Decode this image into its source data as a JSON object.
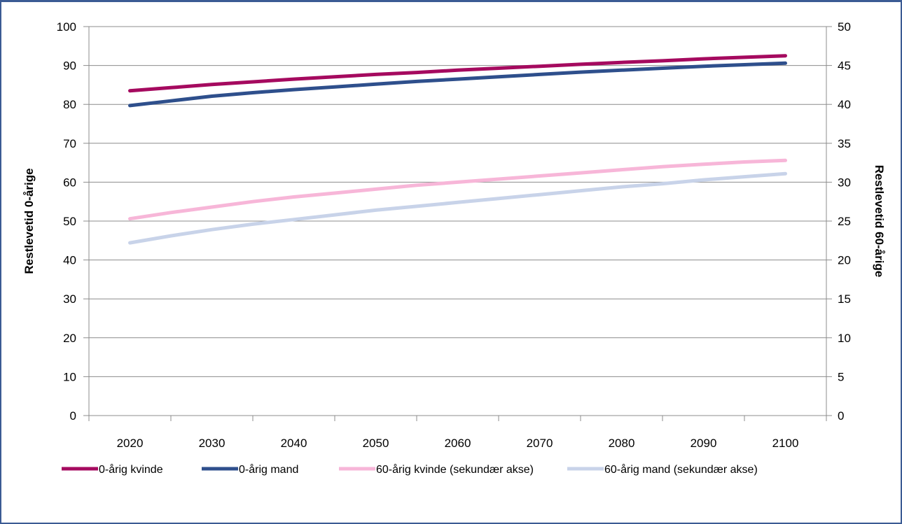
{
  "chart_data": {
    "type": "line",
    "x": [
      2020,
      2025,
      2030,
      2035,
      2040,
      2045,
      2050,
      2055,
      2060,
      2065,
      2070,
      2075,
      2080,
      2085,
      2090,
      2095,
      2100
    ],
    "xticks": [
      "2020",
      "2030",
      "2040",
      "2050",
      "2060",
      "2070",
      "2080",
      "2090",
      "2100"
    ],
    "xlim": [
      2015,
      2105
    ],
    "ylabel": "Restlevetid 0-årige",
    "y2label": "Restlevetid 60-årige",
    "ylim": [
      0,
      100
    ],
    "y2lim": [
      0,
      50
    ],
    "yticks": [
      "0",
      "10",
      "20",
      "30",
      "40",
      "50",
      "60",
      "70",
      "80",
      "90",
      "100"
    ],
    "y2ticks": [
      "0",
      "5",
      "10",
      "15",
      "20",
      "25",
      "30",
      "35",
      "40",
      "45",
      "50"
    ],
    "grid": true,
    "legend_position": "bottom",
    "series": [
      {
        "name": "0-årig kvinde",
        "axis": "primary",
        "color": "#a50a5f",
        "values": [
          83.5,
          84.3,
          85.1,
          85.8,
          86.5,
          87.1,
          87.7,
          88.2,
          88.8,
          89.3,
          89.8,
          90.3,
          90.8,
          91.2,
          91.7,
          92.1,
          92.5
        ]
      },
      {
        "name": "0-årig mand",
        "axis": "primary",
        "color": "#2e4f8c",
        "values": [
          79.7,
          80.9,
          82.1,
          83.0,
          83.8,
          84.5,
          85.2,
          85.9,
          86.5,
          87.1,
          87.7,
          88.3,
          88.8,
          89.3,
          89.8,
          90.2,
          90.6
        ]
      },
      {
        "name": "60-årig kvinde (sekundær akse)",
        "axis": "secondary",
        "color": "#f7b6d8",
        "values": [
          25.3,
          26.1,
          26.8,
          27.5,
          28.1,
          28.6,
          29.1,
          29.6,
          30.0,
          30.4,
          30.8,
          31.2,
          31.6,
          32.0,
          32.3,
          32.6,
          32.8
        ]
      },
      {
        "name": "60-årig mand (sekundær akse)",
        "axis": "secondary",
        "color": "#c8d3e9",
        "values": [
          22.2,
          23.1,
          23.9,
          24.6,
          25.2,
          25.8,
          26.4,
          26.9,
          27.4,
          27.9,
          28.4,
          28.9,
          29.4,
          29.8,
          30.3,
          30.7,
          31.1
        ]
      }
    ]
  }
}
